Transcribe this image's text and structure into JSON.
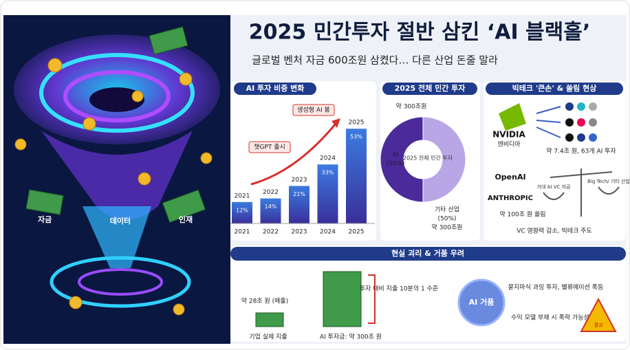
{
  "header": {
    "title": "2025 민간투자 절반 삼킨 ‘AI 블랙홀’",
    "subtitle": "글로벌 벤처 자금 600조원 삼켰다… 다른 산업 돈줄 말라"
  },
  "left": {
    "labels": [
      "자금",
      "데이터",
      "인재"
    ]
  },
  "ai_share": {
    "title": "AI 투자 비중 변화",
    "annotations": [
      "챗GPT 출시",
      "생성형 AI 붐"
    ],
    "categories": [
      "2021",
      "2022",
      "2023",
      "2024",
      "2025"
    ],
    "values": [
      12,
      14,
      21,
      33,
      53
    ],
    "value_labels": [
      "12%",
      "14%",
      "21%",
      "33%",
      "53%"
    ]
  },
  "donut": {
    "title": "2025 전체 민간 투자",
    "top_label": "약 300조원",
    "center": "2025 전체 민간 투자",
    "names": [
      "AI",
      "기타 산업"
    ],
    "values": [
      50,
      50
    ],
    "value_labels": [
      "(50%)",
      "(50%)"
    ],
    "other_note": "약 300조원"
  },
  "bigtech": {
    "title": "빅테크 '큰손' & 쏠림 현상",
    "nvidia": "NVIDIA",
    "nvidia_ko": "엔비디아",
    "nvidia_note": "약 7.4조 원, 63개 AI 투자",
    "openai": "OpenAI",
    "anthropic": "ANTHROPIC",
    "scale_left": "거대 AI VC 자금",
    "scale_right": "Big Tech/ 기타 산업",
    "concentration": "약 100조 원 쏠림",
    "note": "VC 영향력 감소, 빅테크 주도"
  },
  "bottom": {
    "title": "현실 괴리 & 거품 우려",
    "spend": "약 28조 원 (매출)",
    "spend_label": "기업 실제 지출",
    "invest_label": "AI 투자금: 약 300조 원",
    "ratio": "투자 대비 지출 10분의 1 수준",
    "bubble": "AI 거품",
    "bubble_note": "묻지마식 과잉 투자, 밸류에이션 폭등",
    "risk": "수익 모델 부재 시 폭락 가능성",
    "warning": "경고"
  }
}
